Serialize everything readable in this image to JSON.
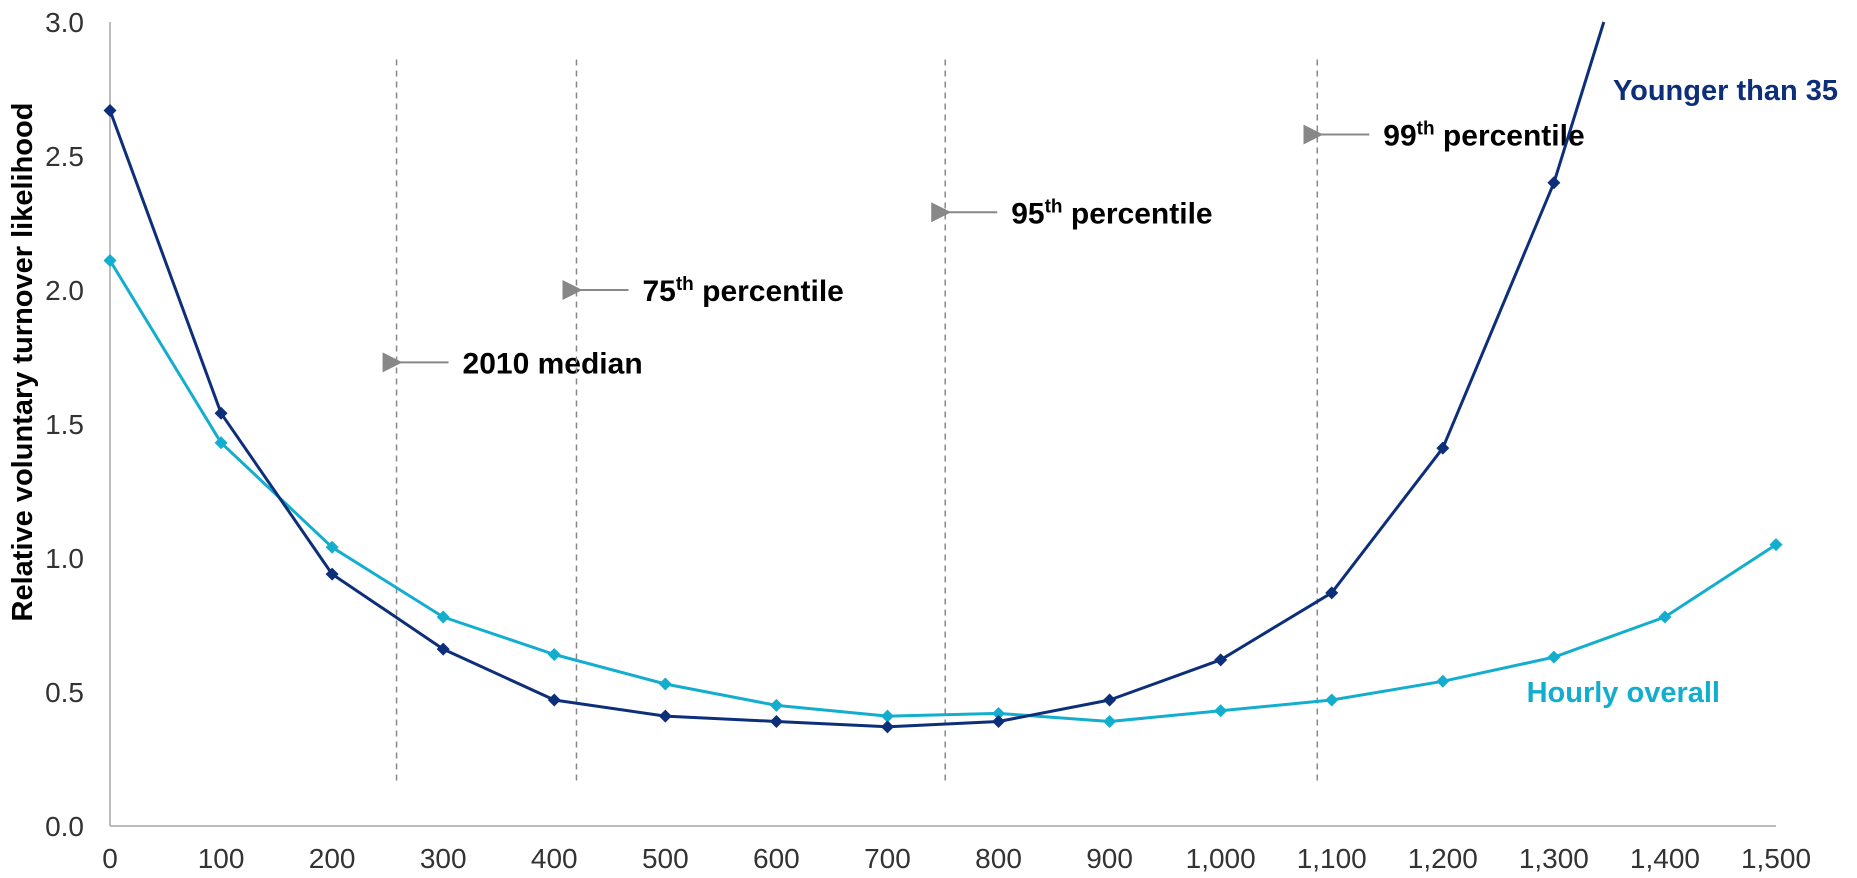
{
  "chart_data": {
    "type": "line",
    "title": "",
    "xlabel": "",
    "ylabel": "Relative voluntary turnover likelihood",
    "xlim": [
      0,
      1500
    ],
    "ylim": [
      0,
      3.0
    ],
    "x_ticks": [
      {
        "value": 0,
        "label": "0"
      },
      {
        "value": 100,
        "label": "100"
      },
      {
        "value": 200,
        "label": "200"
      },
      {
        "value": 300,
        "label": "300"
      },
      {
        "value": 400,
        "label": "400"
      },
      {
        "value": 500,
        "label": "500"
      },
      {
        "value": 600,
        "label": "600"
      },
      {
        "value": 700,
        "label": "700"
      },
      {
        "value": 800,
        "label": "800"
      },
      {
        "value": 900,
        "label": "900"
      },
      {
        "value": 1000,
        "label": "1,000"
      },
      {
        "value": 1100,
        "label": "1,100"
      },
      {
        "value": 1200,
        "label": "1,200"
      },
      {
        "value": 1300,
        "label": "1,300"
      },
      {
        "value": 1400,
        "label": "1,400"
      },
      {
        "value": 1500,
        "label": "1,500"
      }
    ],
    "y_ticks": [
      {
        "value": 0,
        "label": "0.0"
      },
      {
        "value": 0.5,
        "label": "0.5"
      },
      {
        "value": 1.0,
        "label": "1.0"
      },
      {
        "value": 1.5,
        "label": "1.5"
      },
      {
        "value": 2.0,
        "label": "2.0"
      },
      {
        "value": 2.5,
        "label": "2.5"
      },
      {
        "value": 3.0,
        "label": "3.0"
      }
    ],
    "grid": false,
    "legend": "none",
    "series": [
      {
        "name": "Younger than 35",
        "color": "#0d2f7a",
        "marker": "diamond",
        "points": [
          {
            "x": 0,
            "y": 2.67
          },
          {
            "x": 100,
            "y": 1.54
          },
          {
            "x": 200,
            "y": 0.94
          },
          {
            "x": 300,
            "y": 0.66
          },
          {
            "x": 400,
            "y": 0.47
          },
          {
            "x": 500,
            "y": 0.41
          },
          {
            "x": 600,
            "y": 0.39
          },
          {
            "x": 700,
            "y": 0.37
          },
          {
            "x": 800,
            "y": 0.39
          },
          {
            "x": 900,
            "y": 0.47
          },
          {
            "x": 1000,
            "y": 0.62
          },
          {
            "x": 1100,
            "y": 0.87
          },
          {
            "x": 1200,
            "y": 1.41
          },
          {
            "x": 1300,
            "y": 2.4
          }
        ],
        "extends_beyond_axis": {
          "x_at_top": 1345,
          "y": 3.0
        }
      },
      {
        "name": "Hourly overall",
        "color": "#13aece",
        "marker": "diamond",
        "points": [
          {
            "x": 0,
            "y": 2.11
          },
          {
            "x": 100,
            "y": 1.43
          },
          {
            "x": 200,
            "y": 1.04
          },
          {
            "x": 300,
            "y": 0.78
          },
          {
            "x": 400,
            "y": 0.64
          },
          {
            "x": 500,
            "y": 0.53
          },
          {
            "x": 600,
            "y": 0.45
          },
          {
            "x": 700,
            "y": 0.41
          },
          {
            "x": 800,
            "y": 0.42
          },
          {
            "x": 900,
            "y": 0.39
          },
          {
            "x": 1000,
            "y": 0.43
          },
          {
            "x": 1100,
            "y": 0.47
          },
          {
            "x": 1200,
            "y": 0.54
          },
          {
            "x": 1300,
            "y": 0.63
          },
          {
            "x": 1400,
            "y": 0.78
          },
          {
            "x": 1500,
            "y": 1.05
          }
        ]
      }
    ],
    "reference_lines": [
      {
        "x": 258,
        "label": "2010 median",
        "sup": "",
        "label_tail": "",
        "y_label": 1.73
      },
      {
        "x": 420,
        "label": "75",
        "sup": "th",
        "label_tail": " percentile",
        "y_label": 2.0
      },
      {
        "x": 752,
        "label": "95",
        "sup": "th",
        "label_tail": " percentile",
        "y_label": 2.29
      },
      {
        "x": 1087,
        "label": "99",
        "sup": "th",
        "label_tail": " percentile",
        "y_label": 2.58
      }
    ],
    "reference_line_color": "#888888",
    "axis_color": "#a6a6a6"
  }
}
